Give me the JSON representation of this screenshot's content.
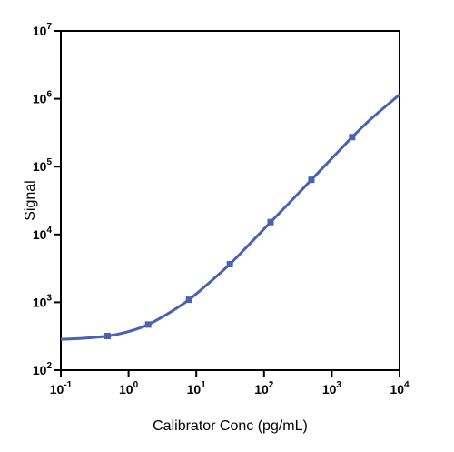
{
  "chart_data": {
    "type": "line",
    "title": "",
    "xlabel": "Calibrator Conc (pg/mL)",
    "ylabel": "Signal",
    "x_scale": "log",
    "y_scale": "log",
    "xlim": [
      0.1,
      10000
    ],
    "ylim": [
      100,
      10000000
    ],
    "grid": false,
    "x_ticks": [
      {
        "base": "10",
        "exp": "-1",
        "value": 0.1
      },
      {
        "base": "10",
        "exp": "0",
        "value": 1
      },
      {
        "base": "10",
        "exp": "1",
        "value": 10
      },
      {
        "base": "10",
        "exp": "2",
        "value": 100
      },
      {
        "base": "10",
        "exp": "3",
        "value": 1000
      },
      {
        "base": "10",
        "exp": "4",
        "value": 10000
      }
    ],
    "y_ticks": [
      {
        "base": "10",
        "exp": "2",
        "value": 100
      },
      {
        "base": "10",
        "exp": "3",
        "value": 1000
      },
      {
        "base": "10",
        "exp": "4",
        "value": 10000
      },
      {
        "base": "10",
        "exp": "5",
        "value": 100000
      },
      {
        "base": "10",
        "exp": "6",
        "value": 1000000
      },
      {
        "base": "10",
        "exp": "7",
        "value": 10000000
      }
    ],
    "series": [
      {
        "color": "#4a62b0",
        "marker": "square",
        "points": [
          {
            "x": 0.49,
            "y": 318
          },
          {
            "x": 1.95,
            "y": 470
          },
          {
            "x": 7.8,
            "y": 1090
          },
          {
            "x": 31.3,
            "y": 3650
          },
          {
            "x": 125,
            "y": 15200
          },
          {
            "x": 500,
            "y": 64000
          },
          {
            "x": 2000,
            "y": 272000
          }
        ],
        "curve": [
          {
            "x": 0.1,
            "y": 285
          },
          {
            "x": 0.2,
            "y": 293
          },
          {
            "x": 0.49,
            "y": 318
          },
          {
            "x": 1.0,
            "y": 370
          },
          {
            "x": 1.95,
            "y": 470
          },
          {
            "x": 4.0,
            "y": 700
          },
          {
            "x": 7.8,
            "y": 1090
          },
          {
            "x": 15.6,
            "y": 1950
          },
          {
            "x": 31.3,
            "y": 3650
          },
          {
            "x": 62.5,
            "y": 7400
          },
          {
            "x": 125,
            "y": 15200
          },
          {
            "x": 250,
            "y": 31000
          },
          {
            "x": 500,
            "y": 64000
          },
          {
            "x": 1000,
            "y": 132000
          },
          {
            "x": 2000,
            "y": 272000
          },
          {
            "x": 4000,
            "y": 530000
          },
          {
            "x": 10000,
            "y": 1150000
          }
        ]
      }
    ]
  }
}
